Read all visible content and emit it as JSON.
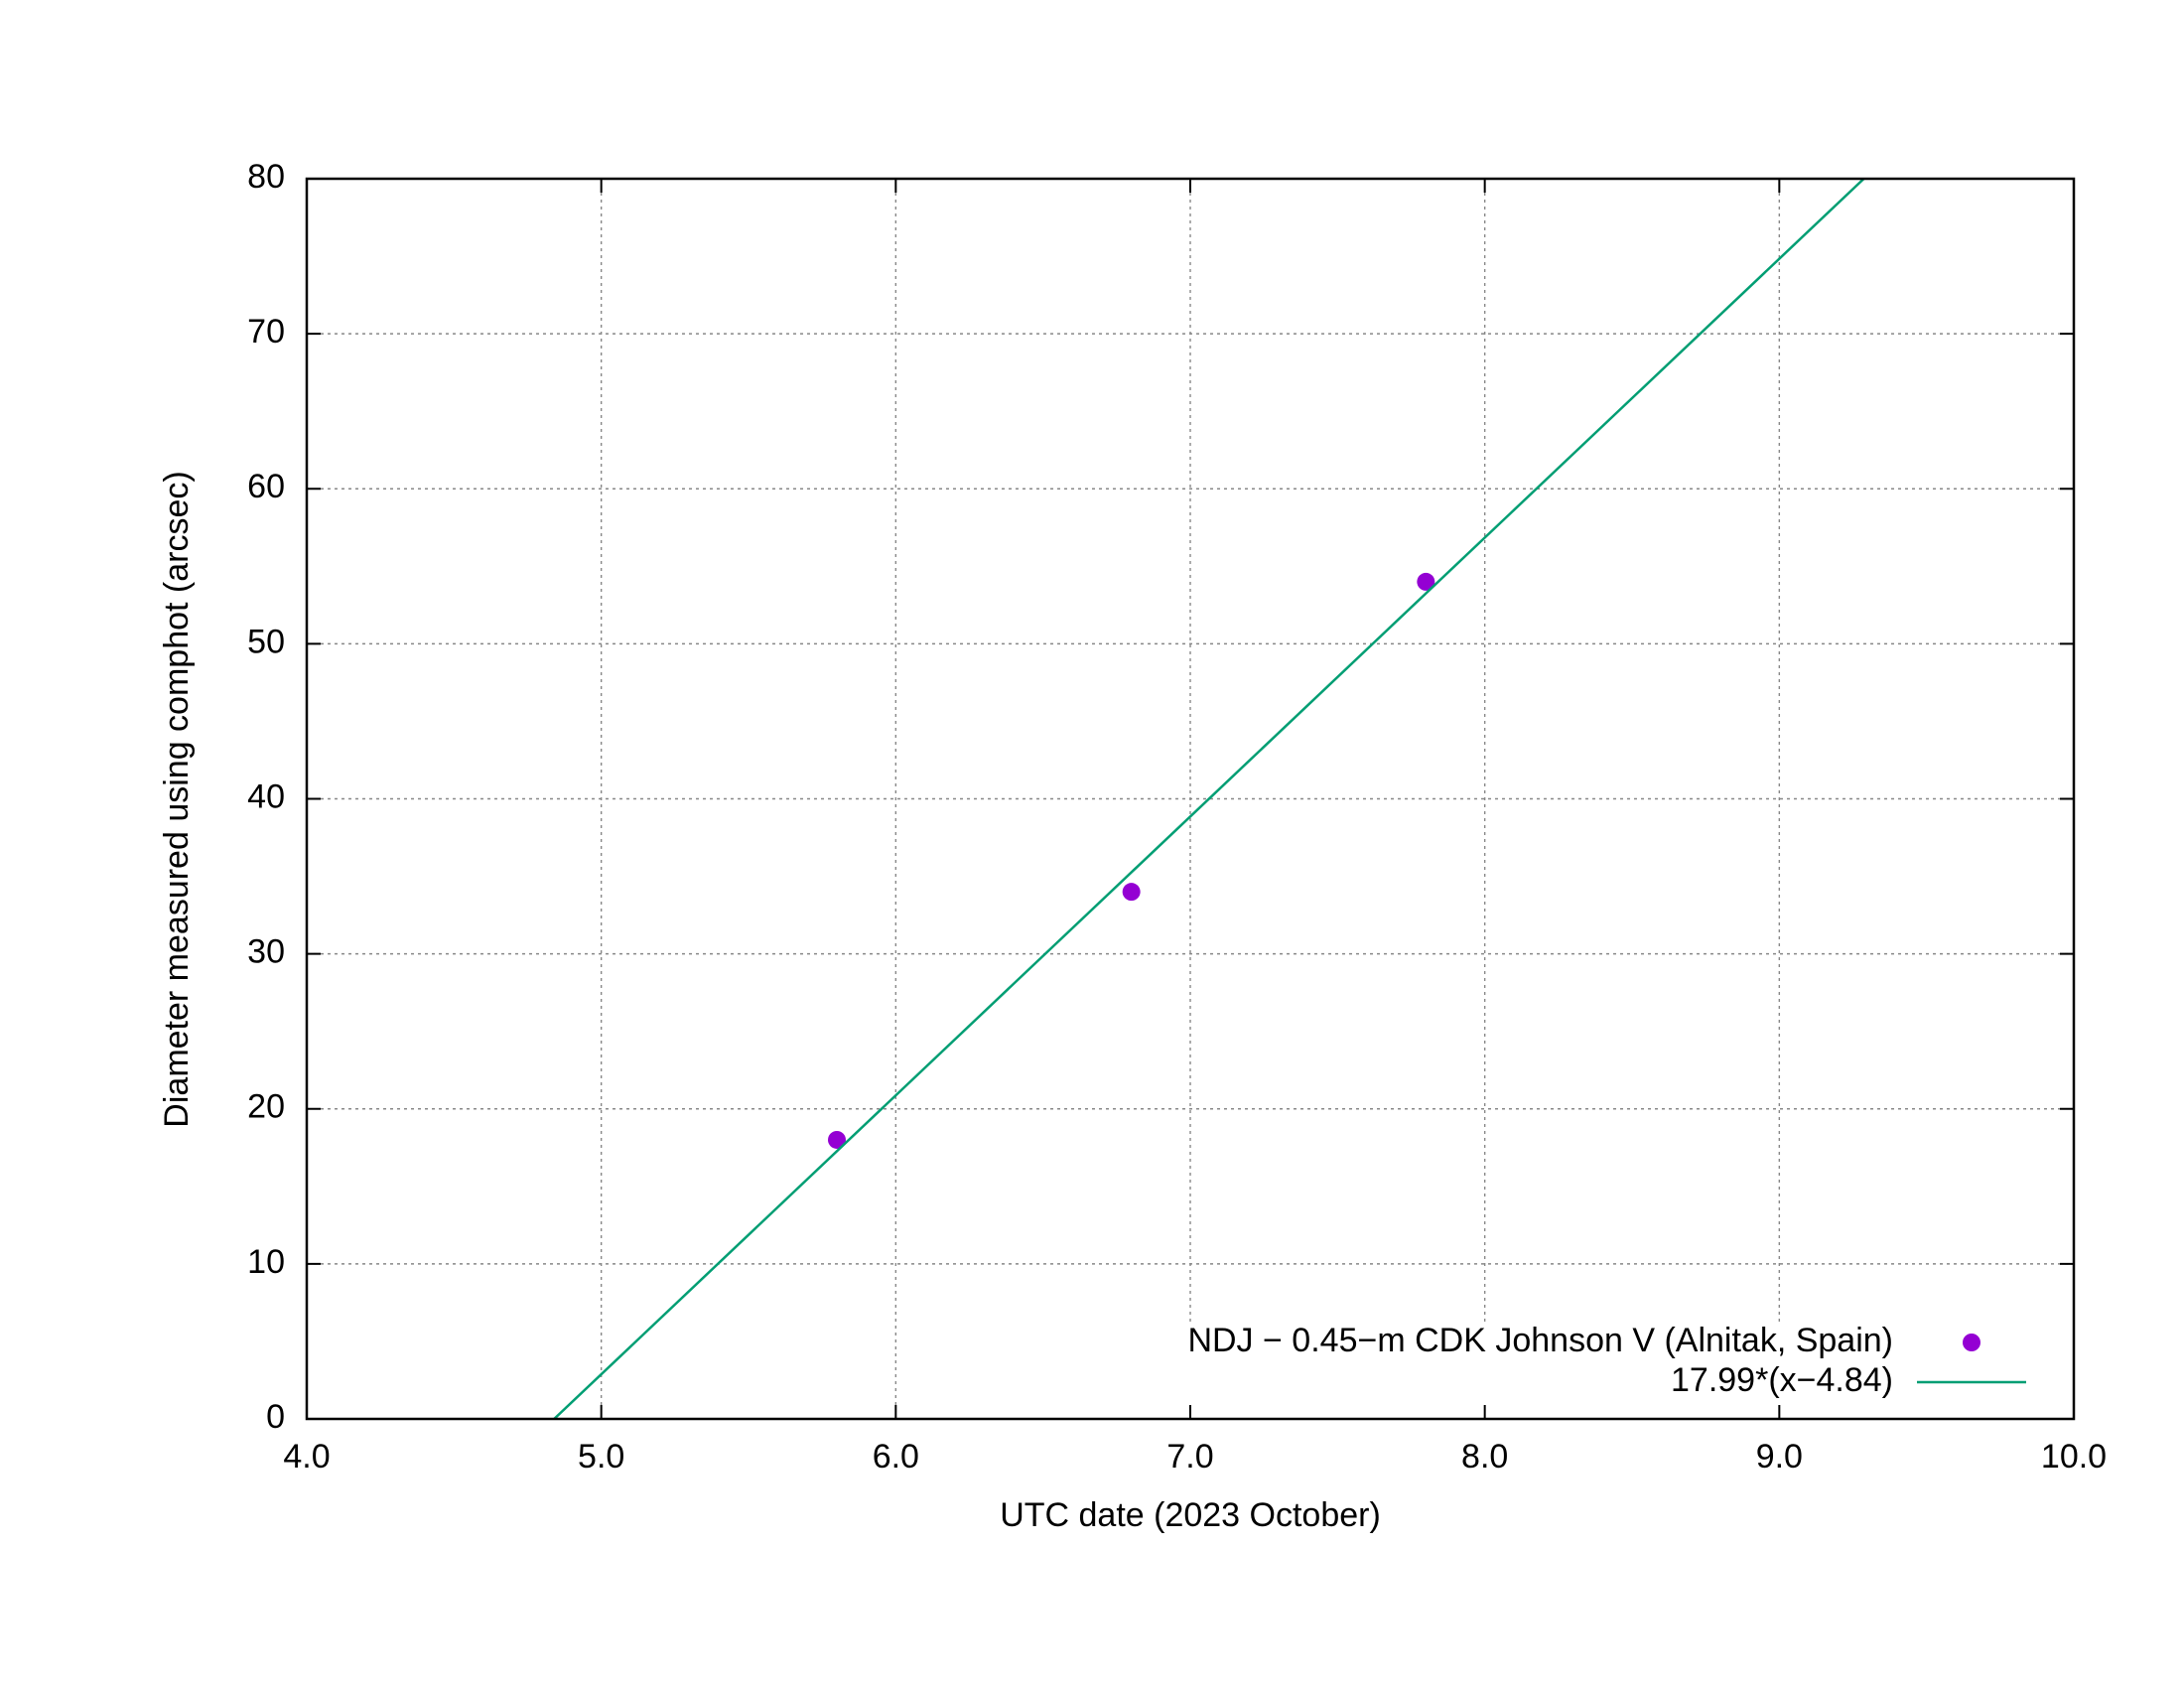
{
  "chart_data": {
    "type": "scatter",
    "xlabel": "UTC date (2023 October)",
    "ylabel": "Diameter measured using comphot (arcsec)",
    "xlim": [
      4.0,
      10.0
    ],
    "ylim": [
      0,
      80
    ],
    "xticks": [
      {
        "value": 4,
        "label": "4.0"
      },
      {
        "value": 5,
        "label": "5.0"
      },
      {
        "value": 6,
        "label": "6.0"
      },
      {
        "value": 7,
        "label": "7.0"
      },
      {
        "value": 8,
        "label": "8.0"
      },
      {
        "value": 9,
        "label": "9.0"
      },
      {
        "value": 10,
        "label": "10.0"
      }
    ],
    "yticks": [
      0,
      10,
      20,
      30,
      40,
      50,
      60,
      70,
      80
    ],
    "grid": true,
    "legend": "lower right",
    "series": [
      {
        "name": "NDJ − 0.45−m CDK Johnson V (Alnitak, Spain)",
        "type": "scatter",
        "color": "#9400d3",
        "x": [
          5.8,
          6.8,
          7.8
        ],
        "values": [
          18,
          34,
          54
        ]
      },
      {
        "name": "17.99*(x−4.84)",
        "type": "line",
        "color": "#009e73",
        "x": [
          4.84,
          9.287
        ],
        "values": [
          0,
          80
        ]
      }
    ]
  }
}
